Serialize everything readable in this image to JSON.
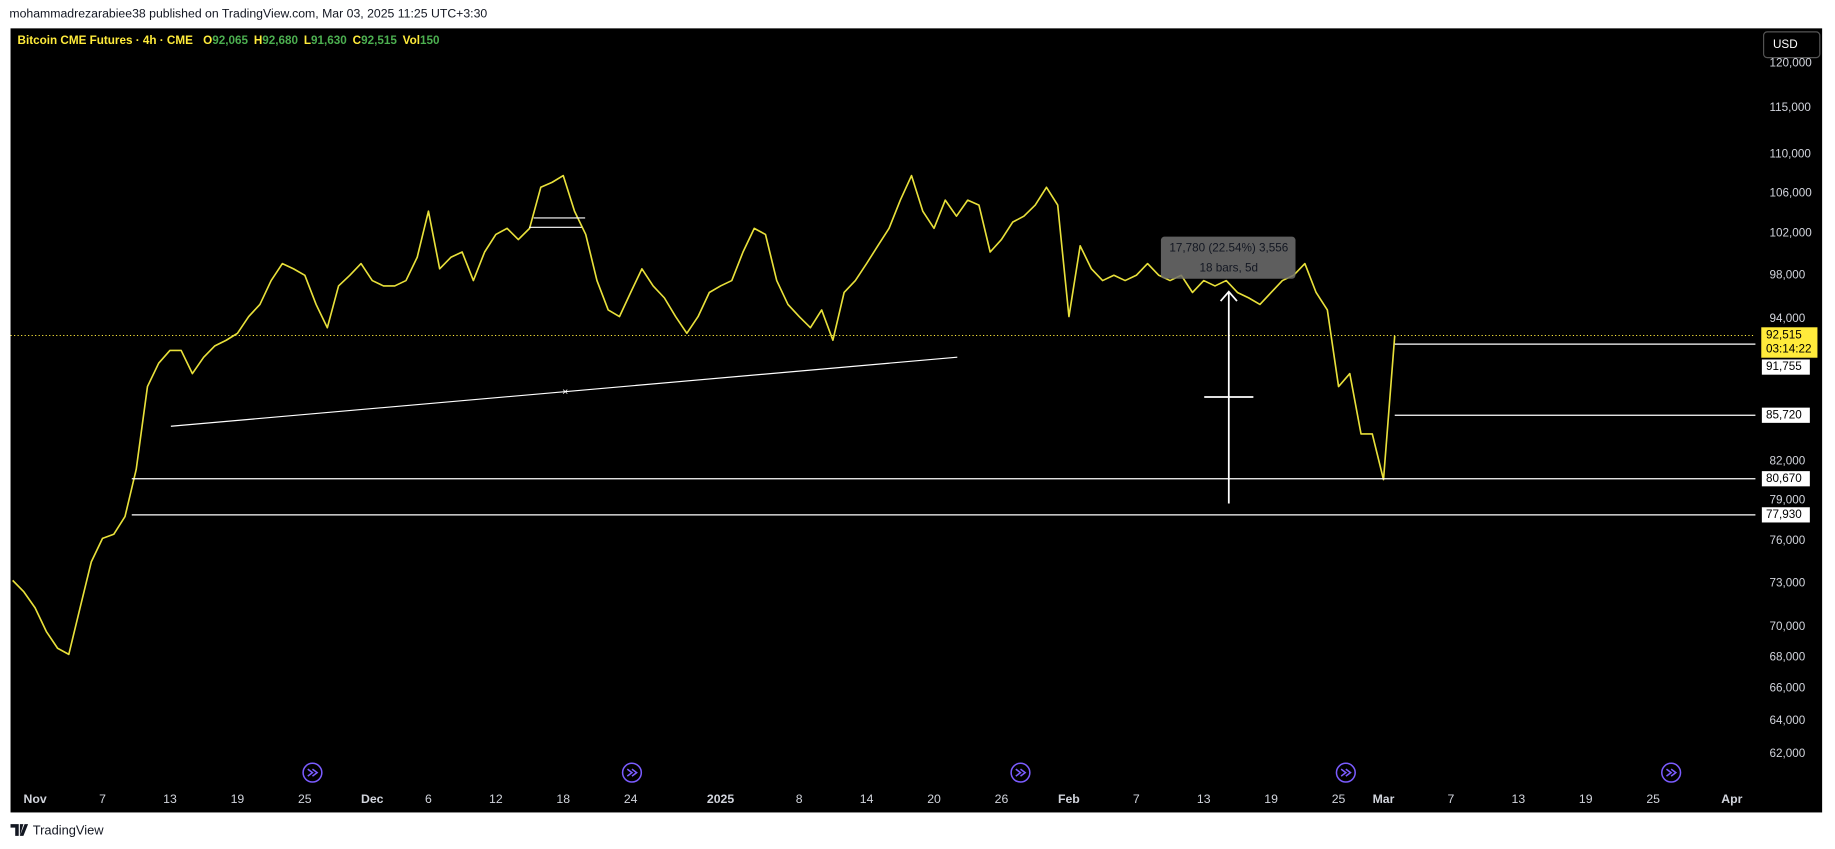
{
  "header": {
    "title": "mohammadrezarabiee38 published on TradingView.com, Mar 03, 2025 11:25 UTC+3:30"
  },
  "legend": {
    "symbol": "Bitcoin CME Futures · 4h · CME",
    "ohlc": [
      {
        "key": "O",
        "value": "92,065"
      },
      {
        "key": "H",
        "value": "92,680"
      },
      {
        "key": "L",
        "value": "91,630"
      },
      {
        "key": "C",
        "value": "92,515"
      },
      {
        "key": "Vol",
        "value": "150"
      }
    ]
  },
  "currency_button": "USD",
  "measure": {
    "line1": "17,780 (22.54%) 3,556",
    "line2": "18 bars, 5d"
  },
  "footer": {
    "brand": "TradingView"
  },
  "chart_data": {
    "type": "line",
    "color": "#e8e03a",
    "log_scale": true,
    "grid": false,
    "x": [
      -2,
      -1,
      0,
      1,
      2,
      3,
      4,
      5,
      6,
      7,
      8,
      9,
      10,
      11,
      12,
      13,
      14,
      15,
      16,
      17,
      18,
      19,
      20,
      21,
      22,
      23,
      24,
      25,
      26,
      27,
      28,
      29,
      30,
      31,
      32,
      33,
      34,
      35,
      36,
      37,
      38,
      39,
      40,
      41,
      42,
      43,
      44,
      45,
      46,
      47,
      48,
      49,
      50,
      51,
      52,
      53,
      54,
      55,
      56,
      57,
      58,
      59,
      60,
      61,
      62,
      63,
      64,
      65,
      66,
      67,
      68,
      69,
      70,
      71,
      72,
      73,
      74,
      75,
      76,
      77,
      78,
      79,
      80,
      81,
      82,
      83,
      84,
      85,
      86,
      87,
      88,
      89,
      90,
      91,
      92,
      93,
      94,
      95,
      96,
      97,
      98,
      99,
      100,
      101,
      102,
      103,
      104,
      105,
      106,
      107,
      108,
      109,
      110,
      111,
      112,
      113,
      114,
      115,
      116,
      117,
      118,
      119,
      120,
      121
    ],
    "values": [
      73200,
      72400,
      71300,
      69700,
      68600,
      68200,
      71300,
      74500,
      76200,
      76500,
      77800,
      81400,
      88100,
      90100,
      91200,
      91200,
      89200,
      90600,
      91600,
      92100,
      92700,
      94200,
      95300,
      97500,
      99100,
      98600,
      98000,
      95300,
      93200,
      97000,
      98000,
      99100,
      97500,
      97000,
      97000,
      97500,
      99700,
      104200,
      98600,
      99700,
      100200,
      97500,
      100200,
      101900,
      102500,
      101400,
      102500,
      106600,
      107100,
      107800,
      104200,
      101900,
      97500,
      94800,
      94200,
      96400,
      98600,
      97000,
      95900,
      94200,
      92700,
      94200,
      96400,
      97000,
      97500,
      100200,
      102500,
      101900,
      97500,
      95300,
      94200,
      93200,
      94800,
      92100,
      96400,
      97500,
      99100,
      100800,
      102500,
      105300,
      107800,
      104200,
      102500,
      105300,
      103700,
      105300,
      104800,
      100200,
      101400,
      103100,
      103700,
      104800,
      106600,
      104800,
      94200,
      100800,
      98600,
      97500,
      98000,
      97500,
      98000,
      99100,
      98000,
      97500,
      98000,
      96400,
      97500,
      97000,
      97500,
      96400,
      95900,
      95300,
      96400,
      97500,
      98000,
      99100,
      96400,
      94800,
      88100,
      89200,
      84200,
      84200,
      80600,
      92500
    ],
    "xlim": [
      -2.19,
      153.1
    ],
    "xticks": [
      {
        "value": 0,
        "label": "Nov"
      },
      {
        "value": 6,
        "label": "7"
      },
      {
        "value": 12,
        "label": "13"
      },
      {
        "value": 18,
        "label": "19"
      },
      {
        "value": 24,
        "label": "25"
      },
      {
        "value": 30,
        "label": "Dec"
      },
      {
        "value": 35,
        "label": "6"
      },
      {
        "value": 41,
        "label": "12"
      },
      {
        "value": 47,
        "label": "18"
      },
      {
        "value": 53,
        "label": "24"
      },
      {
        "value": 61,
        "label": "2025"
      },
      {
        "value": 68,
        "label": "8"
      },
      {
        "value": 74,
        "label": "14"
      },
      {
        "value": 80,
        "label": "20"
      },
      {
        "value": 86,
        "label": "26"
      },
      {
        "value": 92,
        "label": "Feb"
      },
      {
        "value": 98,
        "label": "7"
      },
      {
        "value": 104,
        "label": "13"
      },
      {
        "value": 110,
        "label": "19"
      },
      {
        "value": 116,
        "label": "25"
      },
      {
        "value": 120,
        "label": "Mar"
      },
      {
        "value": 126,
        "label": "7"
      },
      {
        "value": 132,
        "label": "13"
      },
      {
        "value": 138,
        "label": "19"
      },
      {
        "value": 144,
        "label": "25"
      },
      {
        "value": 151,
        "label": "Apr"
      }
    ],
    "ylim": [
      60090,
      124100
    ],
    "yticks": [
      {
        "value": 62000,
        "label": "62,000"
      },
      {
        "value": 64000,
        "label": "64,000"
      },
      {
        "value": 66000,
        "label": "66,000"
      },
      {
        "value": 68000,
        "label": "68,000"
      },
      {
        "value": 70000,
        "label": "70,000"
      },
      {
        "value": 73000,
        "label": "73,000"
      },
      {
        "value": 76000,
        "label": "76,000"
      },
      {
        "value": 79000,
        "label": "79,000"
      },
      {
        "value": 82000,
        "label": "82,000"
      },
      {
        "value": 94000,
        "label": "94,000"
      },
      {
        "value": 98000,
        "label": "98,000"
      },
      {
        "value": 102000,
        "label": "102,000"
      },
      {
        "value": 106000,
        "label": "106,000"
      },
      {
        "value": 110000,
        "label": "110,000"
      },
      {
        "value": 115000,
        "label": "115,000"
      },
      {
        "value": 120000,
        "label": "120,000"
      }
    ],
    "current_price": {
      "value": 92515,
      "label": "92,515",
      "countdown": "03:14:22",
      "color": "#ffeb3b"
    },
    "price_levels": [
      {
        "value": 91755,
        "label": "91,755"
      },
      {
        "value": 85720,
        "label": "85,720"
      },
      {
        "value": 80670,
        "label": "80,670"
      },
      {
        "value": 77930,
        "label": "77,930"
      }
    ]
  }
}
